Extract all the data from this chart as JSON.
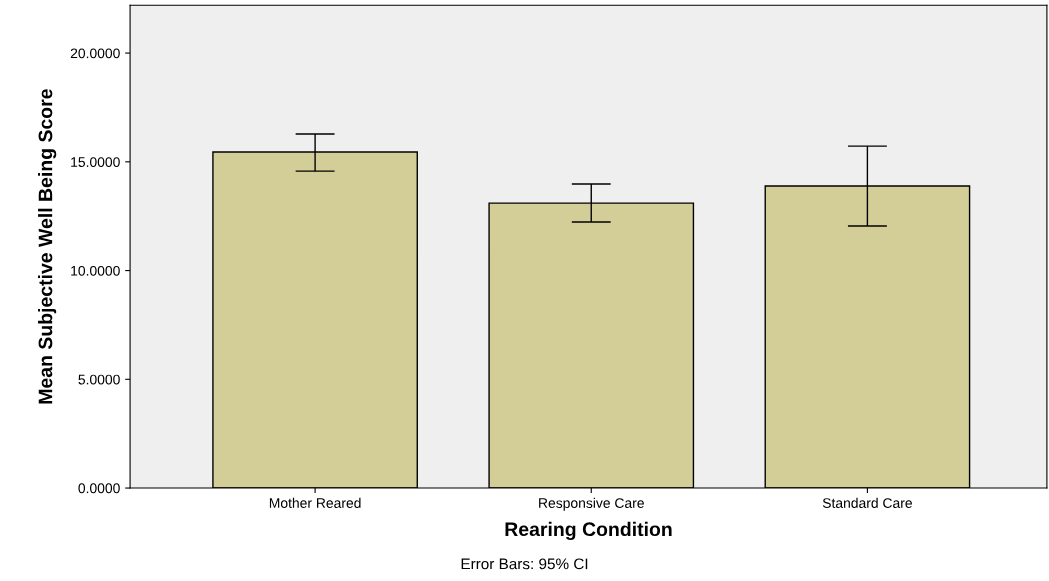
{
  "chart_data": {
    "type": "bar",
    "xlabel": "Rearing Condition",
    "ylabel": "Mean Subjective Well Being Score",
    "categories": [
      "Mother Reared",
      "Responsive Care",
      "Standard Care"
    ],
    "values": [
      15.45,
      13.1,
      13.89
    ],
    "errors": [
      [
        14.57,
        16.28
      ],
      [
        12.23,
        13.98
      ],
      [
        12.05,
        15.72
      ]
    ],
    "color": "#d3ce97",
    "ylim": [
      0,
      22.2
    ],
    "yticks": [
      {
        "value": 0,
        "label": "0.0000"
      },
      {
        "value": 5,
        "label": "5.0000"
      },
      {
        "value": 10,
        "label": "10.0000"
      },
      {
        "value": 15,
        "label": "15.0000"
      },
      {
        "value": 20,
        "label": "20.0000"
      }
    ],
    "grid": false,
    "annotations": [
      "Error Bars: 95% CI"
    ]
  }
}
